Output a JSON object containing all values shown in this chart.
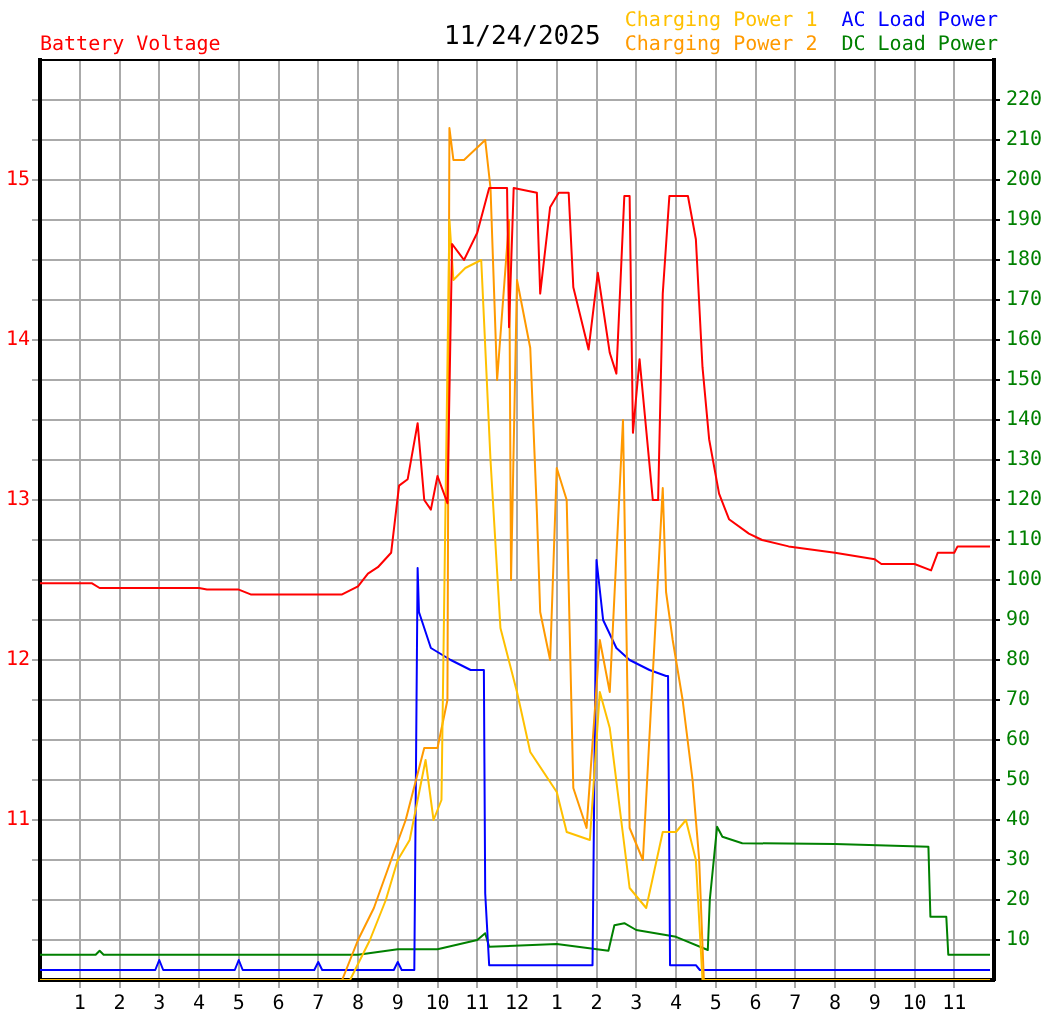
{
  "chart_data": {
    "type": "line",
    "title": "11/24/2025",
    "ylabel": "Battery Voltage",
    "xlim": [
      "2025-11-24T00:00",
      "2025-11-25T00:00"
    ],
    "xticks": [
      {
        "value": "2025-11-24T01:00",
        "label": "1"
      },
      {
        "value": "2025-11-24T02:00",
        "label": "2"
      },
      {
        "value": "2025-11-24T03:00",
        "label": "3"
      },
      {
        "value": "2025-11-24T04:00",
        "label": "4"
      },
      {
        "value": "2025-11-24T05:00",
        "label": "5"
      },
      {
        "value": "2025-11-24T06:00",
        "label": "6"
      },
      {
        "value": "2025-11-24T07:00",
        "label": "7"
      },
      {
        "value": "2025-11-24T08:00",
        "label": "8"
      },
      {
        "value": "2025-11-24T09:00",
        "label": "9"
      },
      {
        "value": "2025-11-24T10:00",
        "label": "10"
      },
      {
        "value": "2025-11-24T11:00",
        "label": "11"
      },
      {
        "value": "2025-11-24T12:00",
        "label": "12"
      },
      {
        "value": "2025-11-24T13:00",
        "label": "1"
      },
      {
        "value": "2025-11-24T14:00",
        "label": "2"
      },
      {
        "value": "2025-11-24T15:00",
        "label": "3"
      },
      {
        "value": "2025-11-24T16:00",
        "label": "4"
      },
      {
        "value": "2025-11-24T17:00",
        "label": "5"
      },
      {
        "value": "2025-11-24T18:00",
        "label": "6"
      },
      {
        "value": "2025-11-24T19:00",
        "label": "7"
      },
      {
        "value": "2025-11-24T20:00",
        "label": "8"
      },
      {
        "value": "2025-11-24T21:00",
        "label": "9"
      },
      {
        "value": "2025-11-24T22:00",
        "label": "10"
      },
      {
        "value": "2025-11-24T23:00",
        "label": "11"
      }
    ],
    "ylim": [
      10,
      15.75
    ],
    "yticks": [
      {
        "value": 10.25,
        "label": null
      },
      {
        "value": 10.5,
        "label": null
      },
      {
        "value": 10.75,
        "label": null
      },
      11,
      {
        "value": 11.25,
        "label": null
      },
      {
        "value": 11.5,
        "label": null
      },
      {
        "value": 11.75,
        "label": null
      },
      12,
      {
        "value": 12.25,
        "label": null
      },
      {
        "value": 12.5,
        "label": null
      },
      {
        "value": 12.75,
        "label": null
      },
      13,
      {
        "value": 13.25,
        "label": null
      },
      {
        "value": 13.5,
        "label": null
      },
      {
        "value": 13.75,
        "label": null
      },
      14,
      {
        "value": 14.25,
        "label": null
      },
      {
        "value": 14.5,
        "label": null
      },
      {
        "value": 14.75,
        "label": null
      },
      15,
      {
        "value": 15.25,
        "label": null
      },
      {
        "value": 15.5,
        "label": null
      }
    ],
    "y2lim": [
      0,
      230
    ],
    "y2ticks": [
      10,
      20,
      30,
      40,
      50,
      60,
      70,
      80,
      90,
      100,
      110,
      120,
      130,
      140,
      150,
      160,
      170,
      180,
      190,
      200,
      210,
      220
    ],
    "grid": true,
    "legend": "top right",
    "marker": "none",
    "line_style": "solid",
    "series": [
      {
        "color": "#ff0000",
        "x": [
          "2025-11-24T00:00",
          "2025-11-24T01:18",
          "2025-11-24T01:30",
          "2025-11-24T04:00",
          "2025-11-24T04:12",
          "2025-11-24T05:00",
          "2025-11-24T05:18",
          "2025-11-24T07:36",
          "2025-11-24T08:00",
          "2025-11-24T08:15",
          "2025-11-24T08:30",
          "2025-11-24T08:50",
          "2025-11-24T09:02",
          "2025-11-24T09:15",
          "2025-11-24T09:30",
          "2025-11-24T09:40",
          "2025-11-24T09:50",
          "2025-11-24T10:00",
          "2025-11-24T10:15",
          "2025-11-24T10:22",
          "2025-11-24T10:40",
          "2025-11-24T11:00",
          "2025-11-24T11:18",
          "2025-11-24T11:45",
          "2025-11-24T11:48",
          "2025-11-24T11:55",
          "2025-11-24T12:30",
          "2025-11-24T12:35",
          "2025-11-24T12:50",
          "2025-11-24T13:03",
          "2025-11-24T13:18",
          "2025-11-24T13:25",
          "2025-11-24T13:48",
          "2025-11-24T14:02",
          "2025-11-24T14:20",
          "2025-11-24T14:30",
          "2025-11-24T14:42",
          "2025-11-24T14:50",
          "2025-11-24T14:55",
          "2025-11-24T15:05",
          "2025-11-24T15:25",
          "2025-11-24T15:33",
          "2025-11-24T15:40",
          "2025-11-24T15:50",
          "2025-11-24T16:18",
          "2025-11-24T16:30",
          "2025-11-24T16:40",
          "2025-11-24T16:50",
          "2025-11-24T17:05",
          "2025-11-24T17:20",
          "2025-11-24T17:50",
          "2025-11-24T18:10",
          "2025-11-24T18:50",
          "2025-11-24T20:00",
          "2025-11-24T21:00",
          "2025-11-24T21:10",
          "2025-11-24T22:00",
          "2025-11-24T22:25",
          "2025-11-24T22:35",
          "2025-11-24T23:00",
          "2025-11-24T23:05",
          "2025-11-24T23:54"
        ],
        "values": [
          12.48,
          12.48,
          12.45,
          12.45,
          12.44,
          12.44,
          12.41,
          12.41,
          12.46,
          12.54,
          12.58,
          12.67,
          13.09,
          13.13,
          13.48,
          13,
          12.94,
          13.15,
          12.98,
          14.6,
          14.5,
          14.67,
          14.95,
          14.95,
          14.08,
          14.95,
          14.92,
          14.29,
          14.83,
          14.92,
          14.92,
          14.33,
          13.94,
          14.42,
          13.92,
          13.79,
          14.9,
          14.9,
          13.42,
          13.88,
          13,
          13,
          14.29,
          14.9,
          14.9,
          14.63,
          13.83,
          13.38,
          13.04,
          12.88,
          12.79,
          12.75,
          12.71,
          12.67,
          12.63,
          12.6,
          12.6,
          12.56,
          12.67,
          12.67,
          12.71,
          12.71
        ]
      },
      {
        "name": "Charging Power 1",
        "color": "#ffc000",
        "axis": "y2",
        "x": [
          "2025-11-24T00:00",
          "2025-11-24T07:48",
          "2025-11-24T08:18",
          "2025-11-24T08:42",
          "2025-11-24T09:00",
          "2025-11-24T09:18",
          "2025-11-24T09:30",
          "2025-11-24T09:42",
          "2025-11-24T09:54",
          "2025-11-24T10:06",
          "2025-11-24T10:18",
          "2025-11-24T10:24",
          "2025-11-24T10:42",
          "2025-11-24T11:06",
          "2025-11-24T11:20",
          "2025-11-24T11:35",
          "2025-11-24T12:00",
          "2025-11-24T12:20",
          "2025-11-24T13:00",
          "2025-11-24T13:15",
          "2025-11-24T13:50",
          "2025-11-24T14:05",
          "2025-11-24T14:20",
          "2025-11-24T14:50",
          "2025-11-24T15:15",
          "2025-11-24T15:40",
          "2025-11-24T16:00",
          "2025-11-24T16:15",
          "2025-11-24T16:30",
          "2025-11-24T16:40",
          "2025-11-24T23:54"
        ],
        "values": [
          0,
          0,
          10,
          20,
          30,
          35,
          45,
          55,
          40,
          45,
          190,
          175,
          178,
          180,
          130,
          88,
          72,
          57,
          47,
          37,
          35,
          72,
          63,
          23,
          18,
          37,
          37,
          40,
          30,
          0,
          0
        ]
      },
      {
        "name": "Charging Power 2",
        "color": "#ff9900",
        "axis": "y2",
        "x": [
          "2025-11-24T00:00",
          "2025-11-24T07:36",
          "2025-11-24T08:00",
          "2025-11-24T08:24",
          "2025-11-24T08:50",
          "2025-11-24T09:12",
          "2025-11-24T09:40",
          "2025-11-24T10:00",
          "2025-11-24T10:15",
          "2025-11-24T10:18",
          "2025-11-24T10:24",
          "2025-11-24T10:40",
          "2025-11-24T11:12",
          "2025-11-24T11:20",
          "2025-11-24T11:30",
          "2025-11-24T11:48",
          "2025-11-24T11:51",
          "2025-11-24T12:00",
          "2025-11-24T12:20",
          "2025-11-24T12:30",
          "2025-11-24T12:35",
          "2025-11-24T12:50",
          "2025-11-24T13:00",
          "2025-11-24T13:15",
          "2025-11-24T13:25",
          "2025-11-24T13:45",
          "2025-11-24T14:05",
          "2025-11-24T14:20",
          "2025-11-24T14:40",
          "2025-11-24T14:50",
          "2025-11-24T15:10",
          "2025-11-24T15:40",
          "2025-11-24T15:45",
          "2025-11-24T15:55",
          "2025-11-24T16:10",
          "2025-11-24T16:25",
          "2025-11-24T16:35",
          "2025-11-24T16:42",
          "2025-11-24T23:54"
        ],
        "values": [
          0,
          0,
          10,
          18,
          30,
          40,
          58,
          58,
          70,
          213,
          205,
          205,
          210,
          198,
          150,
          190,
          100,
          175,
          158,
          117,
          92,
          80,
          128,
          120,
          48,
          38,
          85,
          72,
          140,
          38,
          30,
          123,
          97,
          85,
          70,
          50,
          30,
          0,
          0
        ]
      },
      {
        "name": "AC Load Power",
        "color": "#0000ff",
        "axis": "y2",
        "x": [
          "2025-11-24T00:00",
          "2025-11-24T02:54",
          "2025-11-24T03:00",
          "2025-11-24T03:06",
          "2025-11-24T04:54",
          "2025-11-24T05:00",
          "2025-11-24T05:06",
          "2025-11-24T06:54",
          "2025-11-24T07:00",
          "2025-11-24T07:06",
          "2025-11-24T08:54",
          "2025-11-24T09:00",
          "2025-11-24T09:06",
          "2025-11-24T09:25",
          "2025-11-24T09:30",
          "2025-11-24T09:32",
          "2025-11-24T09:50",
          "2025-11-24T10:20",
          "2025-11-24T10:50",
          "2025-11-24T11:10",
          "2025-11-24T11:12",
          "2025-11-24T11:18",
          "2025-11-24T13:54",
          "2025-11-24T14:00",
          "2025-11-24T14:10",
          "2025-11-24T14:30",
          "2025-11-24T14:50",
          "2025-11-24T15:20",
          "2025-11-24T15:45",
          "2025-11-24T15:48",
          "2025-11-24T15:51",
          "2025-11-24T16:30",
          "2025-11-24T16:36",
          "2025-11-24T23:54"
        ],
        "values": [
          2.5,
          2.5,
          5,
          2.5,
          2.5,
          5,
          2.5,
          2.5,
          4.5,
          2.5,
          2.5,
          4.5,
          2.5,
          2.5,
          103,
          92,
          83,
          80,
          77.5,
          77.5,
          21.7,
          3.7,
          3.7,
          105,
          90,
          83,
          80,
          77.5,
          76,
          76,
          3.7,
          3.7,
          2.5,
          2.5
        ]
      },
      {
        "name": "DC Load Power",
        "color": "#008000",
        "axis": "y2",
        "x": [
          "2025-11-24T00:00",
          "2025-11-24T01:24",
          "2025-11-24T01:30",
          "2025-11-24T01:36",
          "2025-11-24T08:00",
          "2025-11-24T09:00",
          "2025-11-24T10:00",
          "2025-11-24T11:00",
          "2025-11-24T11:12",
          "2025-11-24T11:18",
          "2025-11-24T13:00",
          "2025-11-24T14:18",
          "2025-11-24T14:27",
          "2025-11-24T14:42",
          "2025-11-24T15:00",
          "2025-11-24T16:00",
          "2025-11-24T16:48",
          "2025-11-24T16:51",
          "2025-11-24T17:02",
          "2025-11-24T17:10",
          "2025-11-24T17:40",
          "2025-11-24T20:00",
          "2025-11-24T22:21",
          "2025-11-24T22:24",
          "2025-11-24T22:48",
          "2025-11-24T22:51",
          "2025-11-24T23:54"
        ],
        "values": [
          6.3,
          6.3,
          7.3,
          6.3,
          6.3,
          7.7,
          7.7,
          10,
          11.7,
          8.3,
          9,
          7.3,
          13.7,
          14.2,
          12.5,
          10.8,
          7.5,
          20,
          38.3,
          35.8,
          34.2,
          34,
          33.3,
          15.8,
          15.8,
          6.3,
          6.3
        ]
      }
    ]
  }
}
